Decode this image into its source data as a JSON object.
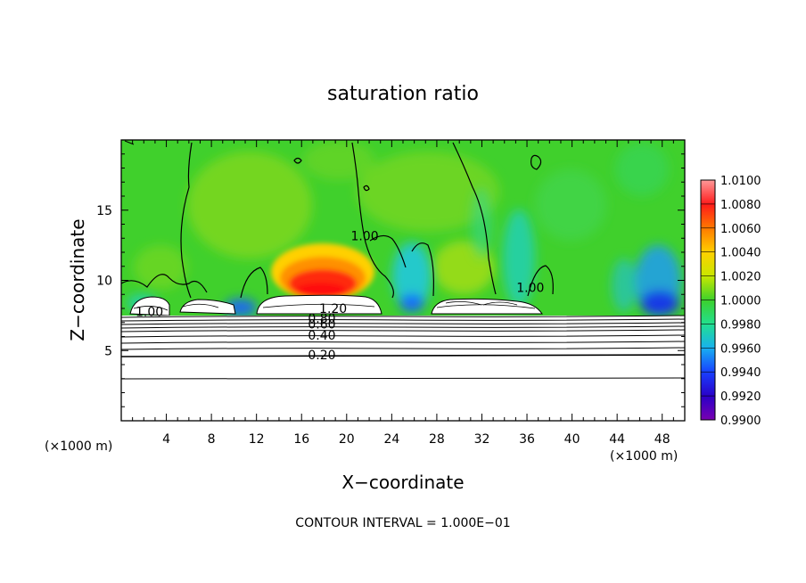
{
  "chart_data": {
    "type": "heatmap",
    "title": "saturation ratio",
    "xlabel": "X−coordinate",
    "ylabel": "Z−coordinate",
    "x_unit_left": "(×1000 m)",
    "x_unit_right": "(×1000 m)",
    "footer": "CONTOUR INTERVAL = 1.000E−01",
    "xlim": [
      0,
      50
    ],
    "ylim": [
      0,
      20
    ],
    "x_ticks": [
      4,
      8,
      12,
      16,
      20,
      24,
      28,
      32,
      36,
      40,
      44,
      48
    ],
    "y_ticks": [
      5,
      10,
      15
    ],
    "contour_labels": [
      {
        "text": "1.00",
        "x": 2.5,
        "y": 7.6
      },
      {
        "text": "1.20",
        "x": 18.8,
        "y": 7.8
      },
      {
        "text": "0.80",
        "x": 17.8,
        "y": 7.1
      },
      {
        "text": "0.60",
        "x": 17.8,
        "y": 6.7
      },
      {
        "text": "0.40",
        "x": 17.8,
        "y": 5.9
      },
      {
        "text": "0.20",
        "x": 17.8,
        "y": 4.5
      },
      {
        "text": "1.00",
        "x": 21.6,
        "y": 13.0
      },
      {
        "text": "1.00",
        "x": 36.3,
        "y": 9.3
      }
    ],
    "colorbar": {
      "levels": [
        "1.0100",
        "1.0080",
        "1.0060",
        "1.0040",
        "1.0020",
        "1.0000",
        "0.9980",
        "0.9960",
        "0.9940",
        "0.9920",
        "0.9900"
      ],
      "colors": [
        "#ff9999",
        "#ff1a1a",
        "#ff7a00",
        "#ffd000",
        "#c8e800",
        "#3cd02c",
        "#22e090",
        "#18b0f0",
        "#1840ff",
        "#2a00c8",
        "#7a00b0"
      ]
    }
  }
}
